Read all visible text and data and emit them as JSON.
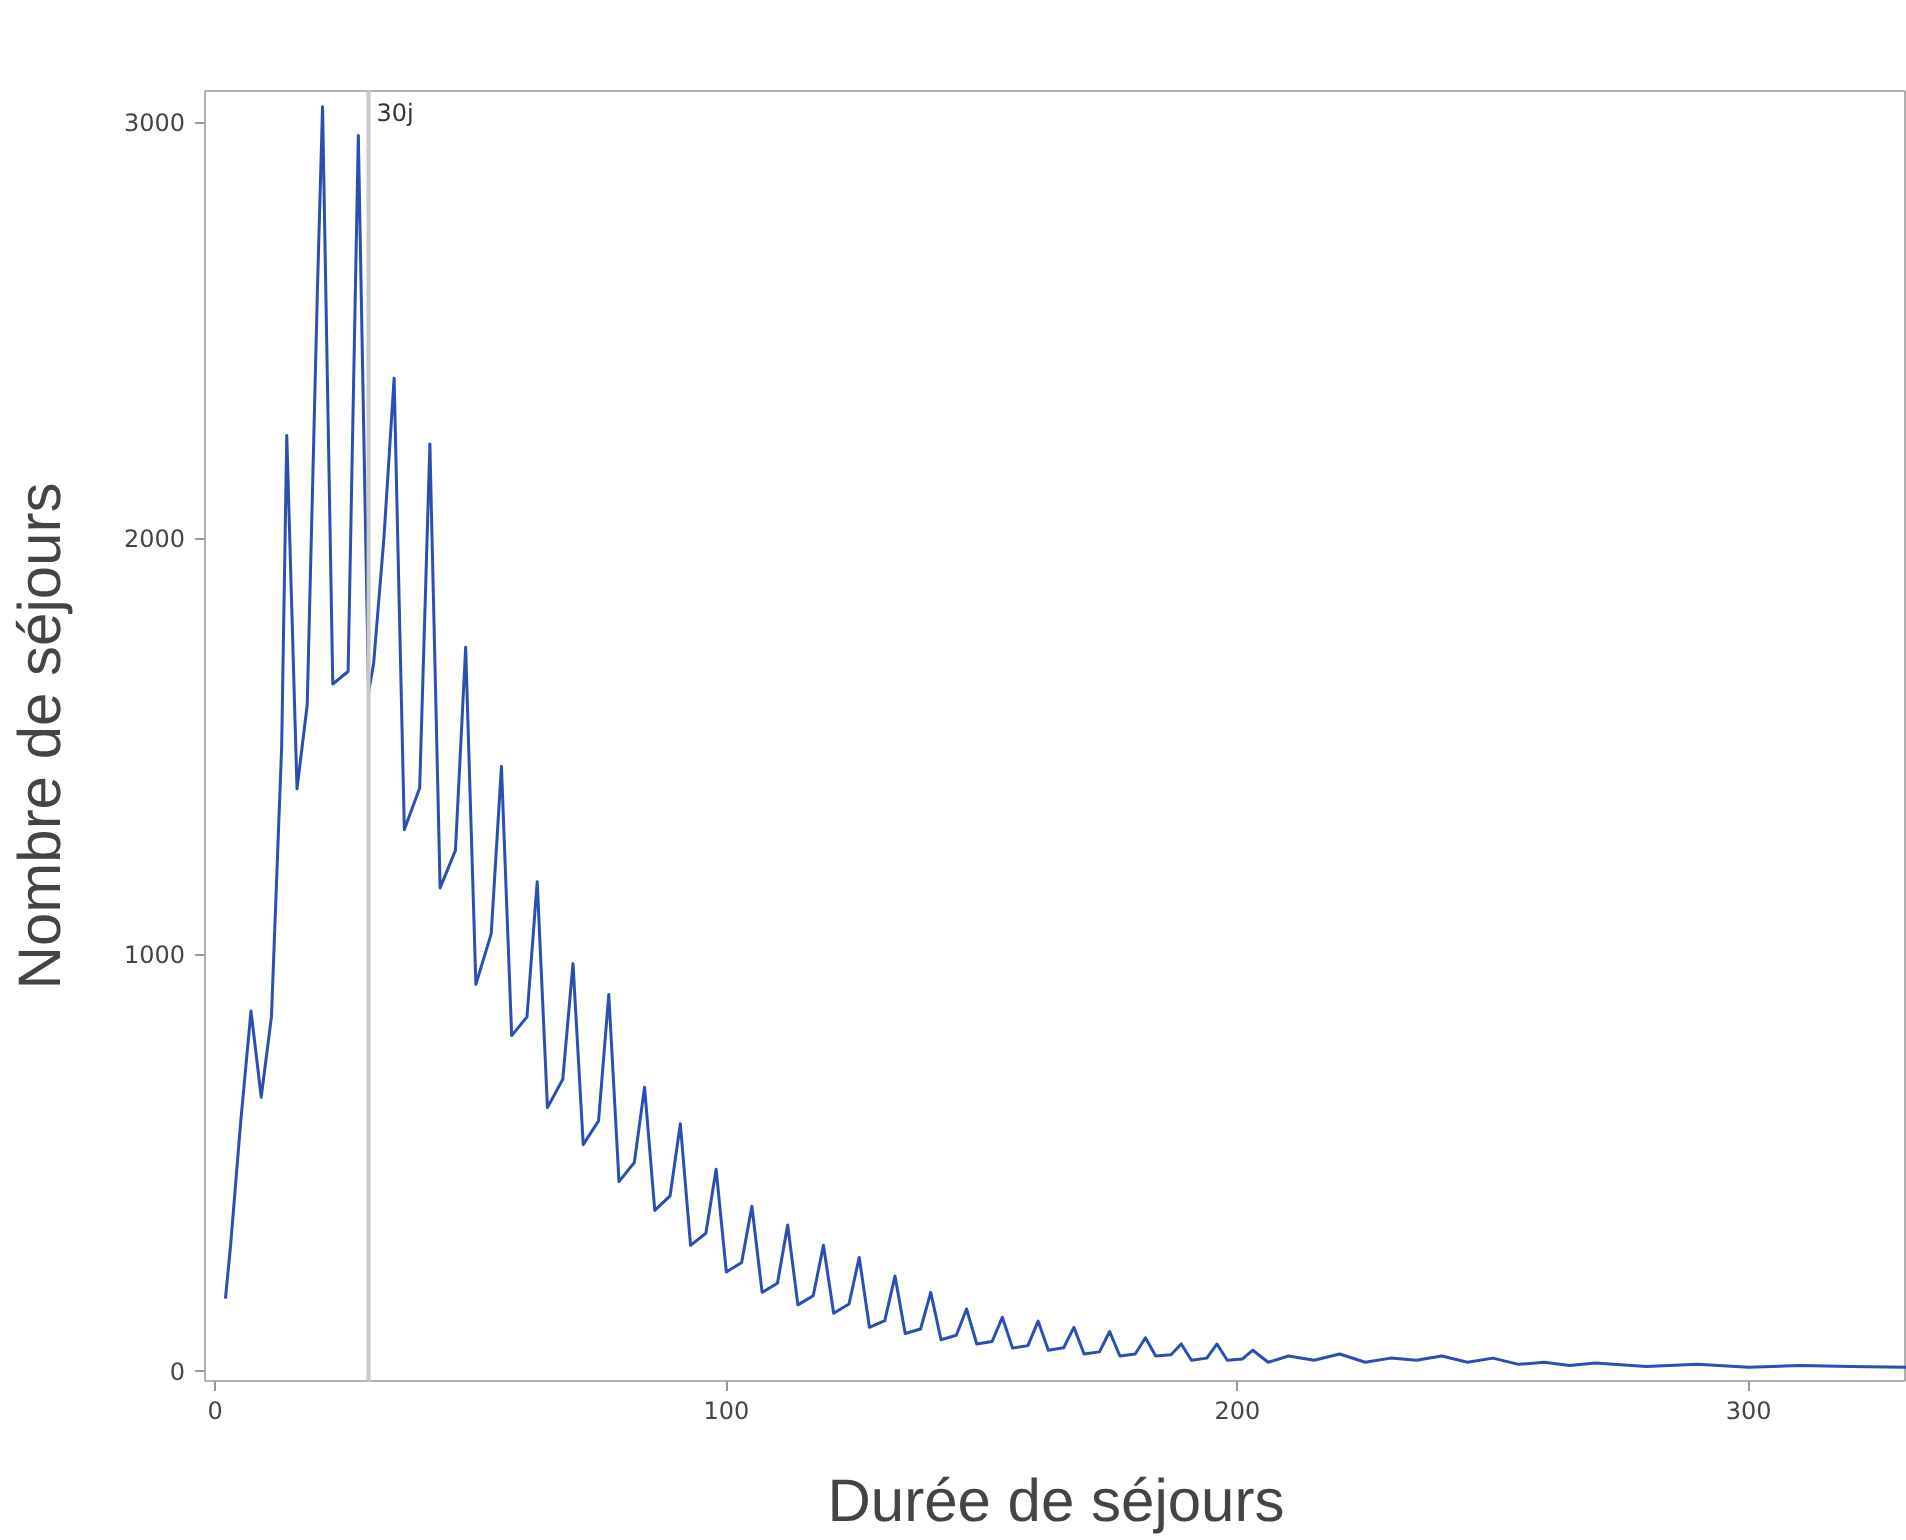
{
  "chart_data": {
    "type": "line",
    "xlabel": "Durée de séjours",
    "ylabel": "Nombre de séjours",
    "x": [
      2,
      3,
      5,
      7,
      9,
      11,
      13,
      14,
      16,
      18,
      20,
      21,
      23,
      26,
      28,
      30,
      31,
      33,
      35,
      37,
      40,
      42,
      44,
      47,
      49,
      51,
      54,
      56,
      58,
      61,
      63,
      65,
      68,
      70,
      72,
      75,
      77,
      79,
      82,
      84,
      86,
      89,
      91,
      93,
      96,
      98,
      100,
      103,
      105,
      107,
      110,
      112,
      114,
      117,
      119,
      121,
      124,
      126,
      128,
      131,
      133,
      135,
      138,
      140,
      142,
      145,
      147,
      149,
      152,
      154,
      156,
      159,
      161,
      163,
      166,
      168,
      170,
      173,
      175,
      177,
      180,
      182,
      184,
      187,
      189,
      191,
      194,
      196,
      198,
      201,
      203,
      206,
      210,
      215,
      220,
      225,
      230,
      235,
      240,
      245,
      250,
      255,
      260,
      265,
      270,
      280,
      290,
      300,
      310,
      320,
      331
    ],
    "series": [
      {
        "color": "#2a4fb0",
        "values": [
          173,
          300,
          600,
          864,
          657,
          850,
          1500,
          2247,
          1398,
          1600,
          2600,
          3037,
          1650,
          1680,
          2968,
          1630,
          1700,
          2000,
          2385,
          1300,
          1400,
          2227,
          1160,
          1250,
          1738,
          928,
          1050,
          1452,
          805,
          850,
          1175,
          632,
          700,
          978,
          543,
          600,
          904,
          454,
          500,
          681,
          385,
          420,
          593,
          301,
          330,
          484,
          237,
          260,
          395,
          188,
          210,
          350,
          158,
          180,
          301,
          138,
          160,
          272,
          104,
          120,
          227,
          89,
          100,
          188,
          74,
          85,
          148,
          64,
          70,
          128,
          54,
          60,
          119,
          49,
          55,
          104,
          40,
          45,
          94,
          35,
          40,
          79,
          35,
          38,
          64,
          25,
          30,
          64,
          25,
          28,
          49,
          20,
          35,
          25,
          40,
          20,
          30,
          25,
          35,
          20,
          30,
          15,
          20,
          12,
          18,
          10,
          15,
          8,
          12,
          10,
          8
        ]
      }
    ],
    "xlim": [
      -2,
      331
    ],
    "ylim": [
      -25,
      3075
    ],
    "xticks": [
      0,
      100,
      200,
      300
    ],
    "yticks": [
      0,
      1000,
      2000,
      3000
    ],
    "ref_lines": [
      {
        "axis": "x",
        "value": 30,
        "label": "30j",
        "color": "#c8c8c8"
      }
    ],
    "grid": false
  }
}
